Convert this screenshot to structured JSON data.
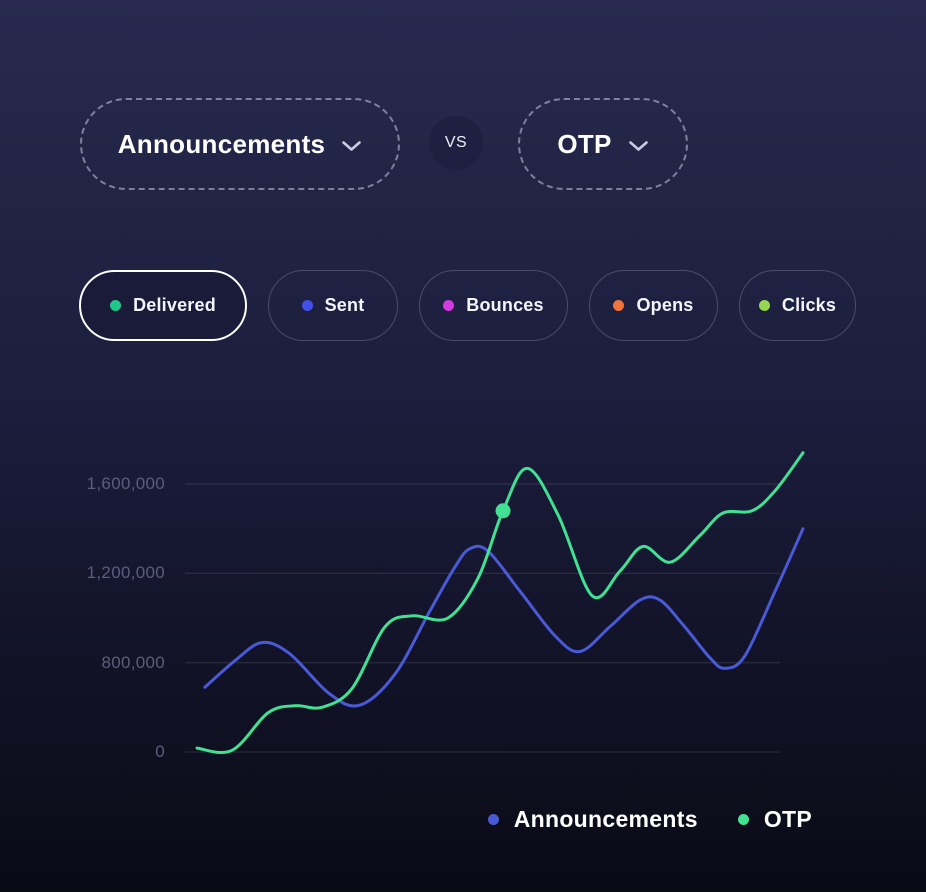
{
  "compare": {
    "left_label": "Announcements",
    "vs_label": "VS",
    "right_label": "OTP"
  },
  "metrics": {
    "items": [
      {
        "label": "Delivered",
        "color": "#1ec98b",
        "selected": true
      },
      {
        "label": "Sent",
        "color": "#4150e8",
        "selected": false
      },
      {
        "label": "Bounces",
        "color": "#d23be0",
        "selected": false
      },
      {
        "label": "Opens",
        "color": "#f0743e",
        "selected": false
      },
      {
        "label": "Clicks",
        "color": "#97d74f",
        "selected": false
      }
    ]
  },
  "chart_data": {
    "type": "line",
    "title": "",
    "xlabel": "",
    "ylabel": "",
    "grid": true,
    "legend_position": "bottom-right",
    "yticks": [
      {
        "label": "0",
        "value": 0
      },
      {
        "label": "800,000",
        "value": 800000
      },
      {
        "label": "1,200,000",
        "value": 1200000
      },
      {
        "label": "1,600,000",
        "value": 1600000
      }
    ],
    "series": [
      {
        "name": "Announcements",
        "color": "#4a59d6",
        "points": [
          {
            "x": 0.013,
            "value": 580000
          },
          {
            "x": 0.063,
            "value": 810000
          },
          {
            "x": 0.107,
            "value": 890000
          },
          {
            "x": 0.153,
            "value": 840000
          },
          {
            "x": 0.219,
            "value": 520000
          },
          {
            "x": 0.269,
            "value": 420000
          },
          {
            "x": 0.327,
            "value": 700000
          },
          {
            "x": 0.384,
            "value": 1030000
          },
          {
            "x": 0.426,
            "value": 1230000
          },
          {
            "x": 0.45,
            "value": 1310000
          },
          {
            "x": 0.48,
            "value": 1300000
          },
          {
            "x": 0.533,
            "value": 1120000
          },
          {
            "x": 0.591,
            "value": 920000
          },
          {
            "x": 0.632,
            "value": 850000
          },
          {
            "x": 0.681,
            "value": 960000
          },
          {
            "x": 0.731,
            "value": 1080000
          },
          {
            "x": 0.764,
            "value": 1080000
          },
          {
            "x": 0.805,
            "value": 960000
          },
          {
            "x": 0.847,
            "value": 820000
          },
          {
            "x": 0.871,
            "value": 750000
          },
          {
            "x": 0.904,
            "value": 830000
          },
          {
            "x": 0.954,
            "value": 1120000
          },
          {
            "x": 1.0,
            "value": 1400000
          }
        ]
      },
      {
        "name": "OTP",
        "color": "#41e092",
        "marker": {
          "x": 0.505,
          "value": 1480000
        },
        "points": [
          {
            "x": 0.0,
            "value": 35000
          },
          {
            "x": 0.058,
            "value": 15000
          },
          {
            "x": 0.117,
            "value": 350000
          },
          {
            "x": 0.162,
            "value": 415000
          },
          {
            "x": 0.206,
            "value": 400000
          },
          {
            "x": 0.256,
            "value": 570000
          },
          {
            "x": 0.31,
            "value": 960000
          },
          {
            "x": 0.355,
            "value": 1010000
          },
          {
            "x": 0.414,
            "value": 1000000
          },
          {
            "x": 0.464,
            "value": 1180000
          },
          {
            "x": 0.505,
            "value": 1480000
          },
          {
            "x": 0.545,
            "value": 1670000
          },
          {
            "x": 0.596,
            "value": 1460000
          },
          {
            "x": 0.652,
            "value": 1100000
          },
          {
            "x": 0.698,
            "value": 1210000
          },
          {
            "x": 0.736,
            "value": 1320000
          },
          {
            "x": 0.781,
            "value": 1250000
          },
          {
            "x": 0.83,
            "value": 1370000
          },
          {
            "x": 0.868,
            "value": 1470000
          },
          {
            "x": 0.916,
            "value": 1480000
          },
          {
            "x": 0.954,
            "value": 1570000
          },
          {
            "x": 1.0,
            "value": 1740000
          }
        ]
      }
    ]
  }
}
